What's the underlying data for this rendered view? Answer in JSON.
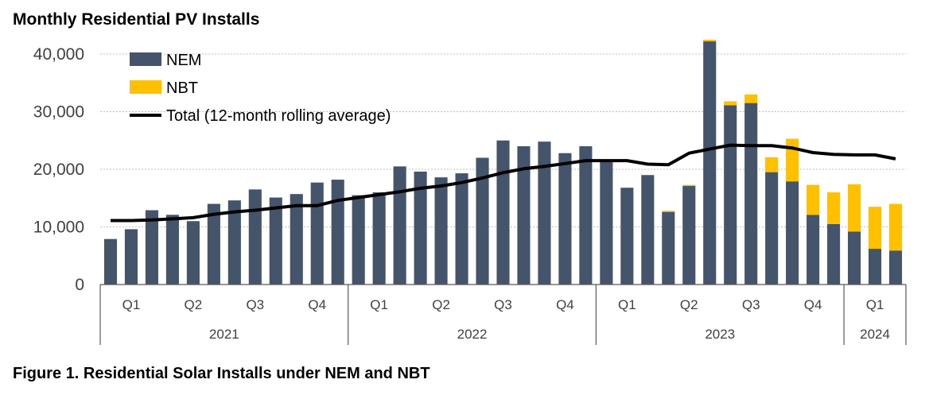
{
  "title": "Monthly Residential PV Installs",
  "caption": "Figure 1. Residential Solar Installs under NEM and NBT",
  "colors": {
    "nem": "#44546a",
    "nbt": "#ffc000",
    "total": "#000000",
    "grid": "#bfbfbf"
  },
  "chart_data": {
    "type": "bar",
    "stacked": true,
    "title": "Monthly Residential PV Installs",
    "ylim": [
      0,
      40000
    ],
    "yticks": [
      "0",
      "10,000",
      "20,000",
      "30,000",
      "40,000"
    ],
    "y_tick_values": [
      0,
      10000,
      20000,
      30000,
      40000
    ],
    "grid": true,
    "legend_position": "top-left",
    "x_quarter_labels": [
      "Q1",
      "Q2",
      "Q3",
      "Q4",
      "Q1",
      "Q2",
      "Q3",
      "Q4",
      "Q1",
      "Q2",
      "Q3",
      "Q4",
      "Q1"
    ],
    "x_year_labels": [
      "2021",
      "2022",
      "2023",
      "2024"
    ],
    "categories": [
      "2021-01",
      "2021-02",
      "2021-03",
      "2021-04",
      "2021-05",
      "2021-06",
      "2021-07",
      "2021-08",
      "2021-09",
      "2021-10",
      "2021-11",
      "2021-12",
      "2022-01",
      "2022-02",
      "2022-03",
      "2022-04",
      "2022-05",
      "2022-06",
      "2022-07",
      "2022-08",
      "2022-09",
      "2022-10",
      "2022-11",
      "2022-12",
      "2023-01",
      "2023-02",
      "2023-03",
      "2023-04",
      "2023-05",
      "2023-06",
      "2023-07",
      "2023-08",
      "2023-09",
      "2023-10",
      "2023-11",
      "2023-12",
      "2024-01",
      "2024-02",
      "2024-03"
    ],
    "series": [
      {
        "name": "NEM",
        "kind": "bar",
        "values": [
          7900,
          9600,
          12900,
          12100,
          11000,
          14000,
          14600,
          16500,
          15100,
          15700,
          17700,
          18200,
          15500,
          16000,
          20500,
          19600,
          18600,
          19300,
          22000,
          25000,
          24000,
          24800,
          22800,
          24000,
          21500,
          16800,
          19000,
          12600,
          17100,
          42200,
          31100,
          31500,
          19500,
          17900,
          12100,
          10500,
          9200,
          6200,
          5900
        ]
      },
      {
        "name": "NBT",
        "kind": "bar",
        "values": [
          0,
          0,
          0,
          0,
          0,
          0,
          0,
          0,
          0,
          0,
          0,
          0,
          0,
          0,
          0,
          0,
          0,
          0,
          0,
          0,
          0,
          0,
          0,
          0,
          0,
          0,
          0,
          200,
          200,
          300,
          700,
          1500,
          2600,
          7400,
          5200,
          5500,
          8200,
          7300,
          8100
        ]
      },
      {
        "name": "Total (12-month rolling average)",
        "kind": "line",
        "values": [
          11100,
          11100,
          11200,
          11400,
          11600,
          12200,
          12600,
          12900,
          13300,
          13700,
          13700,
          14600,
          15100,
          15600,
          16100,
          16700,
          17100,
          17700,
          18500,
          19400,
          20100,
          20500,
          21000,
          21500,
          21500,
          21500,
          20900,
          20800,
          22800,
          23500,
          24200,
          24100,
          24100,
          23700,
          22900,
          22600,
          22500,
          22500,
          21800
        ]
      }
    ]
  }
}
